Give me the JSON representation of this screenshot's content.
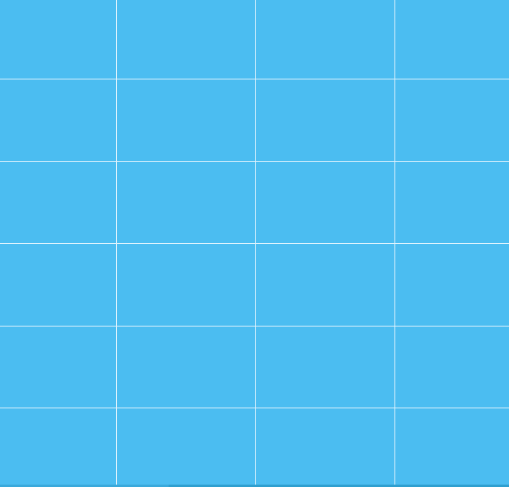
{
  "screen": {
    "background_color": "#4bbdf1",
    "grid_line_color": "#dff3fd",
    "bottom_edge_color": "#3aa9db",
    "bottom_edge_accent_color": "#2f9fcf"
  }
}
